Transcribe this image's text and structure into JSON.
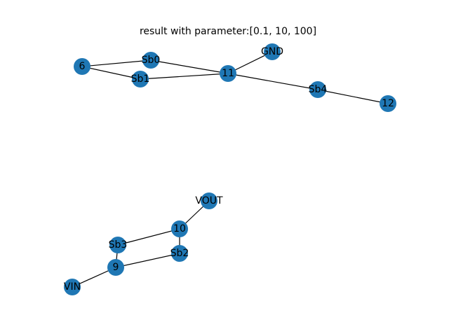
{
  "title": "result with parameter:[0.1, 10, 100]",
  "colors": {
    "node": "#1f77b4",
    "edge": "#000000",
    "background": "#ffffff"
  },
  "nodes": [
    "6",
    "Sb0",
    "Sb1",
    "11",
    "GND",
    "Sb4",
    "12",
    "VOUT",
    "10",
    "Sb3",
    "Sb2",
    "9",
    "VIN"
  ],
  "edges": [
    [
      "6",
      "Sb0"
    ],
    [
      "6",
      "Sb1"
    ],
    [
      "Sb0",
      "11"
    ],
    [
      "Sb1",
      "11"
    ],
    [
      "11",
      "GND"
    ],
    [
      "11",
      "Sb4"
    ],
    [
      "Sb4",
      "12"
    ],
    [
      "VOUT",
      "10"
    ],
    [
      "10",
      "Sb3"
    ],
    [
      "10",
      "Sb2"
    ],
    [
      "Sb3",
      "9"
    ],
    [
      "Sb2",
      "9"
    ],
    [
      "9",
      "VIN"
    ]
  ]
}
